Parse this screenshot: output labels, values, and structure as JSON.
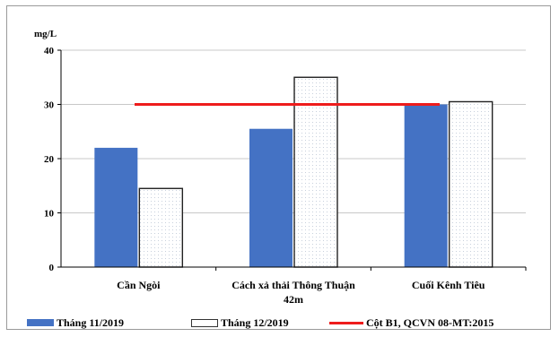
{
  "chart_data": {
    "type": "bar",
    "ylabel": "mg/L",
    "ylim": [
      0,
      40
    ],
    "yticks": [
      0,
      10,
      20,
      30,
      40
    ],
    "grid": true,
    "categories": [
      [
        "Cần Ngòi"
      ],
      [
        "Cách xả thải Thông Thuận",
        "42m"
      ],
      [
        "Cuối Kênh Tiêu"
      ]
    ],
    "series": [
      {
        "name": "Tháng 11/2019",
        "values": [
          22,
          25.5,
          30
        ],
        "color": "#4472c4"
      },
      {
        "name": "Tháng 12/2019",
        "values": [
          14.5,
          35,
          30.5
        ],
        "color": "#ffffff"
      }
    ],
    "reference_line": {
      "name": "Cột B1, QCVN 08-MT:2015",
      "value": 30,
      "color": "#ee1c1c"
    },
    "legend_position": "bottom"
  }
}
